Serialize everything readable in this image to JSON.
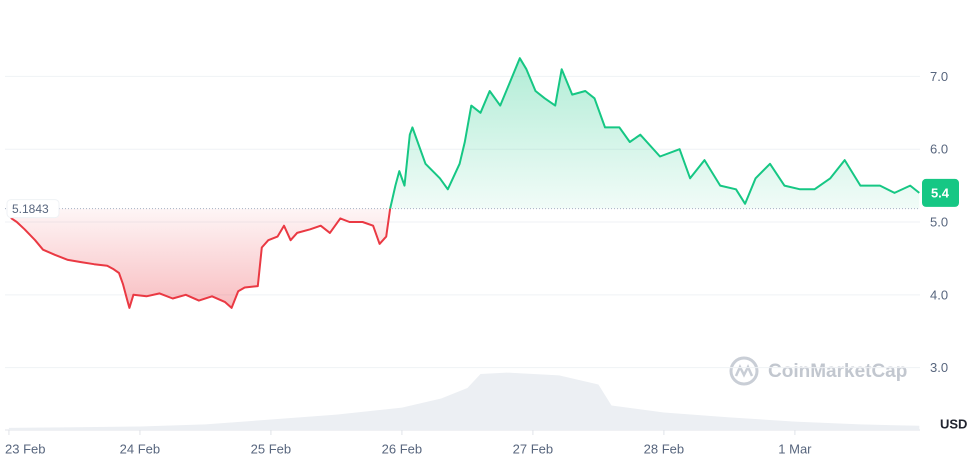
{
  "chart_data": {
    "type": "area",
    "x": [
      0,
      0.02,
      0.06,
      0.12,
      0.2,
      0.26,
      0.35,
      0.45,
      0.55,
      0.65,
      0.75,
      0.8,
      0.84,
      0.87,
      0.9,
      0.92,
      0.95,
      1.05,
      1.15,
      1.25,
      1.35,
      1.45,
      1.55,
      1.65,
      1.7,
      1.75,
      1.8,
      1.9,
      1.93,
      1.98,
      2.05,
      2.1,
      2.15,
      2.2,
      2.3,
      2.38,
      2.45,
      2.53,
      2.6,
      2.7,
      2.78,
      2.83,
      2.88,
      2.91,
      2.95,
      2.98,
      3.02,
      3.06,
      3.08,
      3.18,
      3.29,
      3.35,
      3.44,
      3.48,
      3.53,
      3.6,
      3.67,
      3.75,
      3.82,
      3.9,
      3.95,
      4.02,
      4.09,
      4.17,
      4.22,
      4.3,
      4.4,
      4.47,
      4.55,
      4.66,
      4.74,
      4.82,
      4.97,
      5.12,
      5.2,
      5.31,
      5.43,
      5.55,
      5.62,
      5.7,
      5.81,
      5.92,
      6.04,
      6.15,
      6.27,
      6.38,
      6.5,
      6.65,
      6.76,
      6.88,
      6.95
    ],
    "values": [
      5.18,
      5.05,
      5.0,
      4.9,
      4.75,
      4.62,
      4.55,
      4.48,
      4.45,
      4.42,
      4.4,
      4.35,
      4.3,
      4.15,
      3.95,
      3.82,
      4.0,
      3.98,
      4.02,
      3.95,
      4.0,
      3.92,
      3.98,
      3.9,
      3.82,
      4.05,
      4.1,
      4.12,
      4.65,
      4.75,
      4.8,
      4.95,
      4.75,
      4.85,
      4.9,
      4.95,
      4.85,
      5.05,
      5.0,
      5.0,
      4.95,
      4.7,
      4.8,
      5.18,
      5.5,
      5.7,
      5.5,
      6.2,
      6.3,
      5.8,
      5.6,
      5.45,
      5.8,
      6.1,
      6.6,
      6.5,
      6.8,
      6.6,
      6.9,
      7.25,
      7.1,
      6.8,
      6.7,
      6.6,
      7.1,
      6.75,
      6.8,
      6.7,
      6.3,
      6.3,
      6.1,
      6.2,
      5.9,
      6.0,
      5.6,
      5.85,
      5.5,
      5.45,
      5.25,
      5.6,
      5.8,
      5.5,
      5.45,
      5.45,
      5.6,
      5.85,
      5.5,
      5.5,
      5.4,
      5.5,
      5.4
    ],
    "baseline": 5.1843,
    "current_value": 5.4,
    "up_color": "#16c784",
    "down_color": "#ea3943",
    "xlim": [
      -0.03,
      6.955
    ],
    "xticks": [
      {
        "value": 0,
        "label": "23 Feb"
      },
      {
        "value": 1,
        "label": "24 Feb"
      },
      {
        "value": 2,
        "label": "25 Feb"
      },
      {
        "value": 3,
        "label": "26 Feb"
      },
      {
        "value": 4,
        "label": "27 Feb"
      },
      {
        "value": 5,
        "label": "28 Feb"
      },
      {
        "value": 6,
        "label": "1 Mar"
      }
    ],
    "ylim": [
      2.143,
      8.05
    ],
    "yticks": [
      {
        "value": 3,
        "label": "3.0"
      },
      {
        "value": 4,
        "label": "4.0"
      },
      {
        "value": 5,
        "label": "5.0"
      },
      {
        "value": 6,
        "label": "6.0"
      },
      {
        "value": 7,
        "label": "7.0"
      }
    ],
    "grid": true,
    "currency": "USD",
    "watermark": "CoinMarketCap",
    "volume": {
      "x": [
        0,
        0.5,
        1,
        1.5,
        2,
        2.5,
        3,
        3.3,
        3.5,
        3.6,
        3.8,
        4.2,
        4.5,
        4.6,
        5,
        5.5,
        6,
        6.5,
        6.95
      ],
      "values": [
        3,
        4,
        5,
        8,
        15,
        22,
        32,
        45,
        60,
        80,
        82,
        78,
        65,
        35,
        25,
        18,
        12,
        8,
        6
      ],
      "ylim": [
        0,
        100
      ],
      "color": "#eceff3"
    }
  }
}
